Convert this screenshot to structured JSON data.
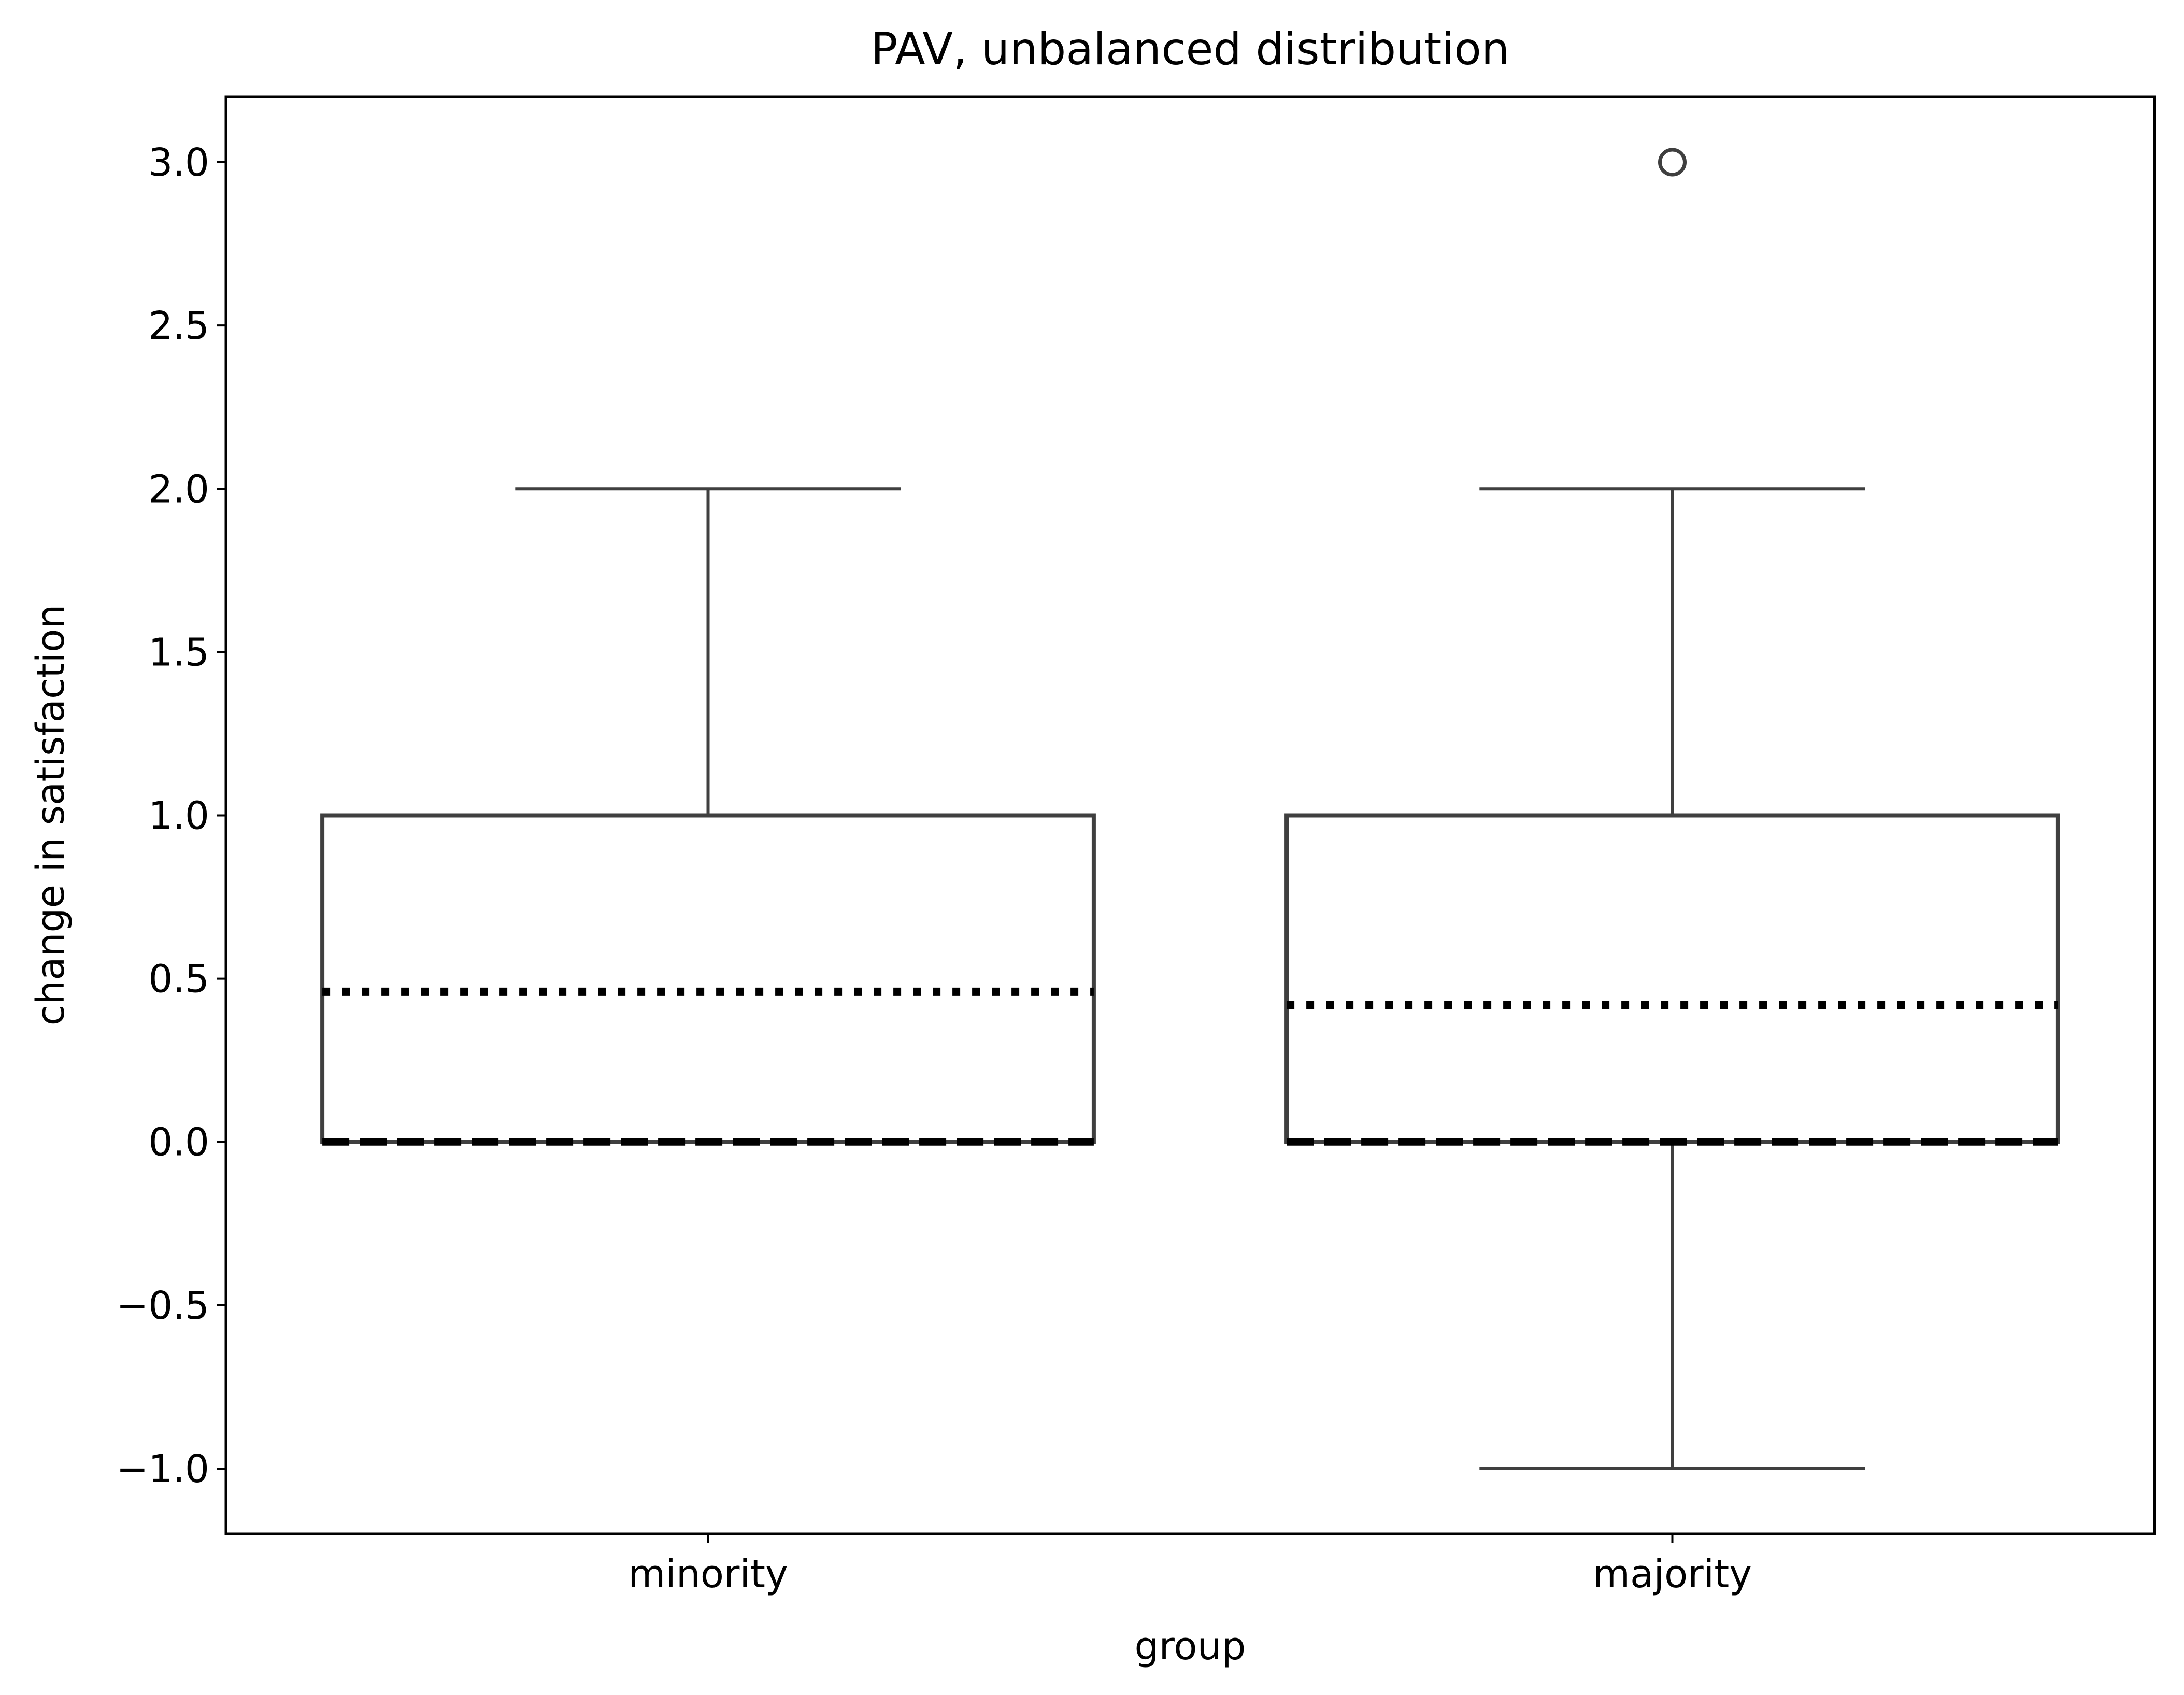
{
  "chart_data": {
    "type": "box",
    "title": "PAV, unbalanced distribution",
    "xlabel": "group",
    "ylabel": "change in satisfaction",
    "categories": [
      "minority",
      "majority"
    ],
    "ylim": [
      -1.2,
      3.2
    ],
    "yticks": [
      -1.0,
      -0.5,
      0.0,
      0.5,
      1.0,
      1.5,
      2.0,
      2.5,
      3.0
    ],
    "ytick_labels": [
      "−1.0",
      "−0.5",
      "0.0",
      "0.5",
      "1.0",
      "1.5",
      "2.0",
      "2.5",
      "3.0"
    ],
    "grid": false,
    "boxes": [
      {
        "category": "minority",
        "whisker_low": 0.0,
        "q1": 0.0,
        "median": 0.0,
        "q3": 1.0,
        "whisker_high": 2.0,
        "mean": 0.46,
        "outliers": []
      },
      {
        "category": "majority",
        "whisker_low": -1.0,
        "q1": 0.0,
        "median": 0.0,
        "q3": 1.0,
        "whisker_high": 2.0,
        "mean": 0.42,
        "outliers": [
          3.0
        ]
      }
    ],
    "colors": {
      "box_edge": "#3f3f3f",
      "median": "#000000",
      "mean": "#000000",
      "axes": "#000000"
    }
  }
}
